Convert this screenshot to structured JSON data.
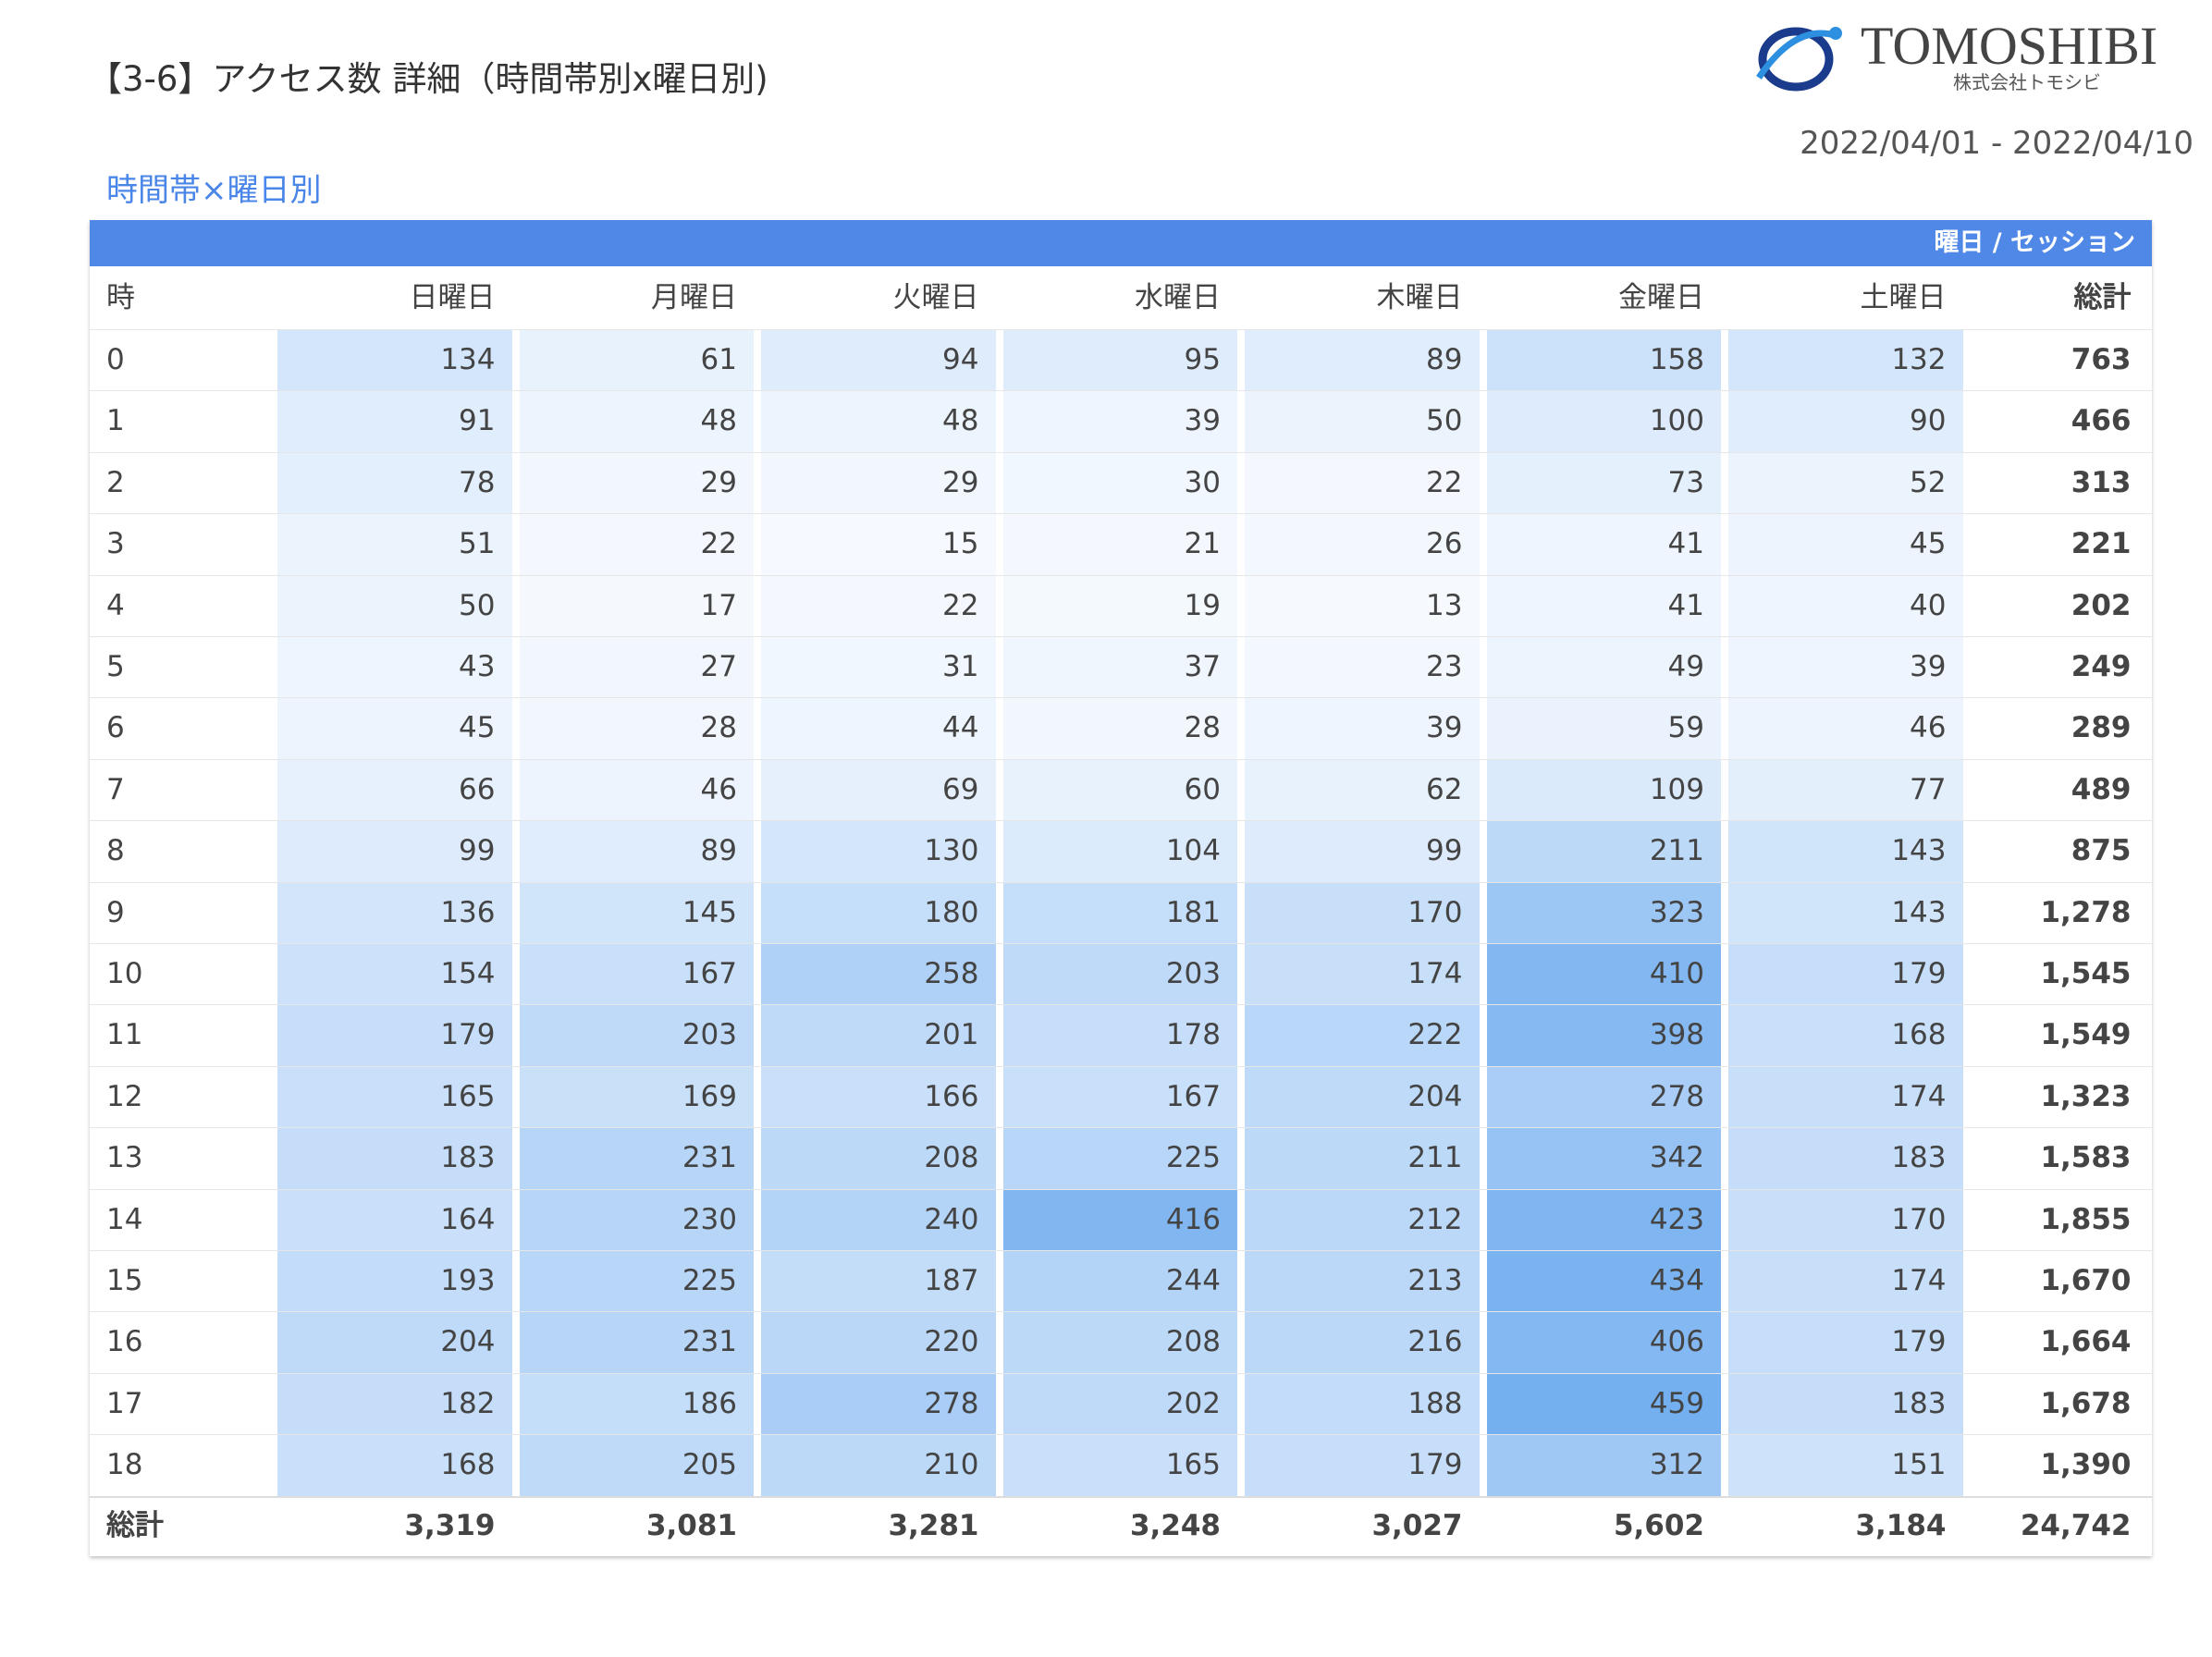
{
  "header": {
    "title": "【3-6】アクセス数 詳細（時間帯別x曜日別)",
    "date_range": "2022/04/01 - 2022/04/10",
    "logo": {
      "name": "TOMOSHIBI",
      "company": "株式会社トモシビ"
    }
  },
  "table": {
    "title": "時間帯×曜日別",
    "metric_label": "曜日 / セッション",
    "hour_header": "時",
    "columns": [
      "日曜日",
      "月曜日",
      "火曜日",
      "水曜日",
      "木曜日",
      "金曜日",
      "土曜日"
    ],
    "total_header": "総計",
    "rows": [
      {
        "hour": 0,
        "values": [
          134,
          61,
          94,
          95,
          89,
          158,
          132
        ],
        "total": "763"
      },
      {
        "hour": 1,
        "values": [
          91,
          48,
          48,
          39,
          50,
          100,
          90
        ],
        "total": "466"
      },
      {
        "hour": 2,
        "values": [
          78,
          29,
          29,
          30,
          22,
          73,
          52
        ],
        "total": "313"
      },
      {
        "hour": 3,
        "values": [
          51,
          22,
          15,
          21,
          26,
          41,
          45
        ],
        "total": "221"
      },
      {
        "hour": 4,
        "values": [
          50,
          17,
          22,
          19,
          13,
          41,
          40
        ],
        "total": "202"
      },
      {
        "hour": 5,
        "values": [
          43,
          27,
          31,
          37,
          23,
          49,
          39
        ],
        "total": "249"
      },
      {
        "hour": 6,
        "values": [
          45,
          28,
          44,
          28,
          39,
          59,
          46
        ],
        "total": "289"
      },
      {
        "hour": 7,
        "values": [
          66,
          46,
          69,
          60,
          62,
          109,
          77
        ],
        "total": "489"
      },
      {
        "hour": 8,
        "values": [
          99,
          89,
          130,
          104,
          99,
          211,
          143
        ],
        "total": "875"
      },
      {
        "hour": 9,
        "values": [
          136,
          145,
          180,
          181,
          170,
          323,
          143
        ],
        "total": "1,278"
      },
      {
        "hour": 10,
        "values": [
          154,
          167,
          258,
          203,
          174,
          410,
          179
        ],
        "total": "1,545"
      },
      {
        "hour": 11,
        "values": [
          179,
          203,
          201,
          178,
          222,
          398,
          168
        ],
        "total": "1,549"
      },
      {
        "hour": 12,
        "values": [
          165,
          169,
          166,
          167,
          204,
          278,
          174
        ],
        "total": "1,323"
      },
      {
        "hour": 13,
        "values": [
          183,
          231,
          208,
          225,
          211,
          342,
          183
        ],
        "total": "1,583"
      },
      {
        "hour": 14,
        "values": [
          164,
          230,
          240,
          416,
          212,
          423,
          170
        ],
        "total": "1,855"
      },
      {
        "hour": 15,
        "values": [
          193,
          225,
          187,
          244,
          213,
          434,
          174
        ],
        "total": "1,670"
      },
      {
        "hour": 16,
        "values": [
          204,
          231,
          220,
          208,
          216,
          406,
          179
        ],
        "total": "1,664"
      },
      {
        "hour": 17,
        "values": [
          182,
          186,
          278,
          202,
          188,
          459,
          183
        ],
        "total": "1,678"
      },
      {
        "hour": 18,
        "values": [
          168,
          205,
          210,
          165,
          179,
          312,
          151
        ],
        "total": "1,390"
      }
    ],
    "totals_label": "総計",
    "column_totals": [
      "3,319",
      "3,081",
      "3,281",
      "3,248",
      "3,027",
      "5,602",
      "3,184"
    ],
    "grand_total": "24,742"
  }
}
